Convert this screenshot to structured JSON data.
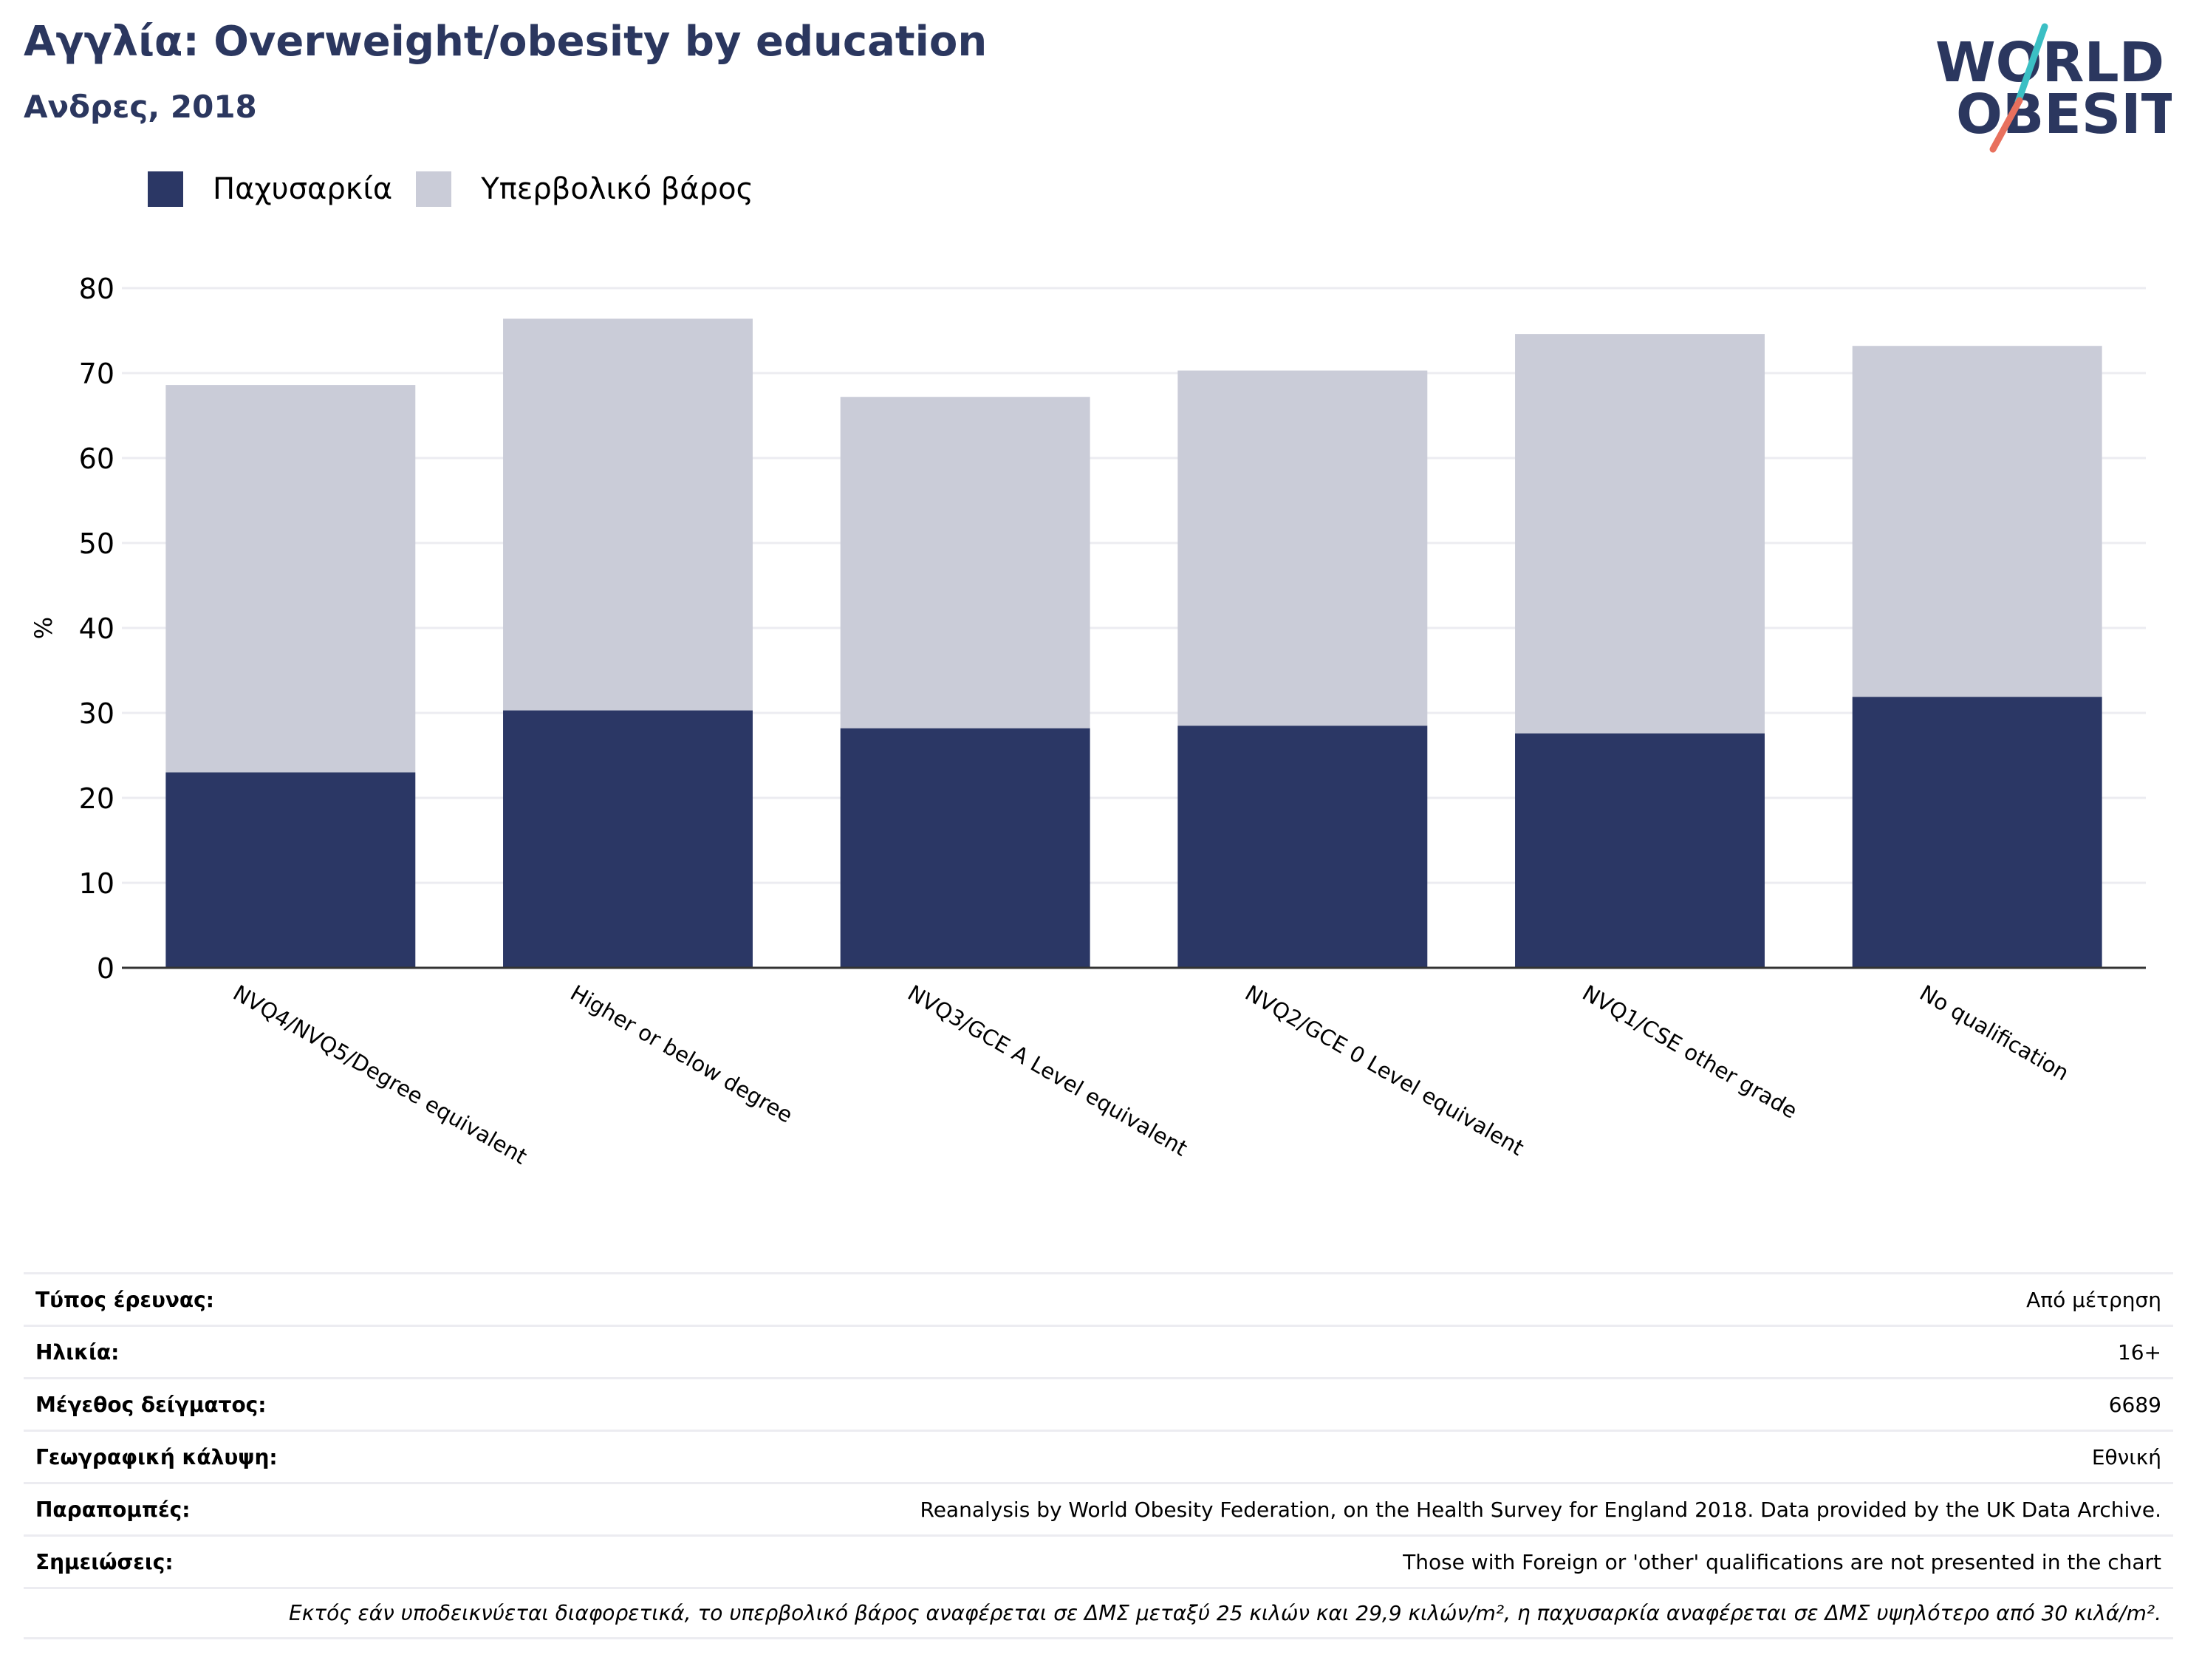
{
  "header": {
    "title": "Αγγλία: Overweight/obesity by education",
    "subtitle": "Ανδρες, 2018"
  },
  "logo": {
    "line1": "WORLD",
    "line2": "OBESITY",
    "slash_color_top": "#3bbfc4",
    "slash_color_bottom": "#e8705d",
    "text_color": "#2b375f"
  },
  "colors": {
    "obesity": "#2b3765",
    "overweight": "#caccd8",
    "axis": "#333333",
    "grid": "#ececf1"
  },
  "chart_data": {
    "type": "bar",
    "stacked": true,
    "title": "Αγγλία: Overweight/obesity by education",
    "subtitle": "Ανδρες, 2018",
    "ylabel": "%",
    "xlabel": "",
    "ylim": [
      0,
      80
    ],
    "yticks": [
      0,
      10,
      20,
      30,
      40,
      50,
      60,
      70,
      80
    ],
    "grid": true,
    "legend_position": "top-left",
    "categories": [
      "NVQ4/NVQ5/Degree equivalent",
      "Higher or below degree",
      "NVQ3/GCE A Level equivalent",
      "NVQ2/GCE 0 Level equivalent",
      "NVQ1/CSE other grade",
      "No qualification"
    ],
    "series": [
      {
        "name": "Παχυσαρκία",
        "values": [
          23.0,
          30.3,
          28.2,
          28.5,
          27.6,
          31.9
        ]
      },
      {
        "name": "Υπερβολικό βάρος",
        "values": [
          45.6,
          46.1,
          39.0,
          41.8,
          47.0,
          41.3
        ]
      }
    ]
  },
  "info": [
    {
      "label": "Τύπος έρευνας:",
      "value": "Από μέτρηση"
    },
    {
      "label": "Ηλικία:",
      "value": "16+"
    },
    {
      "label": "Μέγεθος δείγματος:",
      "value": "6689"
    },
    {
      "label": "Γεωγραφική κάλυψη:",
      "value": "Εθνική"
    },
    {
      "label": "Παραπομπές:",
      "value": "Reanalysis by World Obesity Federation, on the Health Survey for England 2018. Data provided by the UK Data Archive."
    },
    {
      "label": "Σημειώσεις:",
      "value": "Those with Foreign or 'other' qualifications are not presented in the chart"
    }
  ],
  "footnote": "Εκτός εάν υποδεικνύεται διαφορετικά, το υπερβολικό βάρος αναφέρεται σε ΔΜΣ μεταξύ 25 κιλών και 29,9 κιλών/m², η παχυσαρκία αναφέρεται σε ΔΜΣ υψηλότερο από 30 κιλά/m²."
}
